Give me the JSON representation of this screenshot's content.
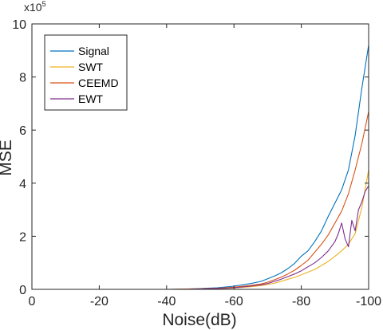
{
  "chart_data": {
    "type": "line",
    "xlabel": "Noise(dB)",
    "ylabel": "MSE",
    "y_multiplier_base": "x10",
    "y_multiplier_exp": "5",
    "xlim": [
      0,
      -100
    ],
    "ylim": [
      0,
      10
    ],
    "x_ticks": [
      0,
      -20,
      -40,
      -60,
      -80,
      -100
    ],
    "x_tick_labels": [
      "0",
      "-20",
      "-40",
      "-60",
      "-80",
      "-100"
    ],
    "y_ticks": [
      0,
      2,
      4,
      6,
      8,
      10
    ],
    "y_tick_labels": [
      "0",
      "2",
      "4",
      "6",
      "8",
      "10"
    ],
    "legend_position": "top-left",
    "grid": false,
    "series": [
      {
        "name": "Signal",
        "color": "#0072BD",
        "x": [
          -40,
          -45,
          -50,
          -55,
          -60,
          -65,
          -68,
          -70,
          -72,
          -74,
          -76,
          -78,
          -80,
          -82,
          -84,
          -86,
          -88,
          -90,
          -92,
          -94,
          -96,
          -98,
          -100
        ],
        "y": [
          0.0,
          0.01,
          0.03,
          0.06,
          0.12,
          0.22,
          0.3,
          0.4,
          0.5,
          0.62,
          0.78,
          0.98,
          1.25,
          1.45,
          1.8,
          2.2,
          2.75,
          3.25,
          3.75,
          4.5,
          5.8,
          7.6,
          9.2
        ]
      },
      {
        "name": "SWT",
        "color": "#EDB120",
        "x": [
          -40,
          -45,
          -50,
          -55,
          -60,
          -65,
          -68,
          -70,
          -72,
          -74,
          -76,
          -78,
          -80,
          -82,
          -84,
          -86,
          -88,
          -90,
          -92,
          -94,
          -96,
          -98,
          -100
        ],
        "y": [
          0.0,
          0.0,
          0.01,
          0.02,
          0.05,
          0.1,
          0.14,
          0.18,
          0.23,
          0.3,
          0.38,
          0.45,
          0.55,
          0.65,
          0.75,
          0.9,
          1.05,
          1.25,
          1.45,
          1.7,
          2.1,
          3.1,
          4.5
        ]
      },
      {
        "name": "CEEMD",
        "color": "#D95319",
        "x": [
          -40,
          -45,
          -50,
          -55,
          -60,
          -65,
          -68,
          -70,
          -72,
          -74,
          -76,
          -78,
          -80,
          -82,
          -84,
          -86,
          -88,
          -90,
          -92,
          -94,
          -96,
          -98,
          -100
        ],
        "y": [
          0.0,
          0.01,
          0.02,
          0.04,
          0.08,
          0.15,
          0.2,
          0.27,
          0.36,
          0.46,
          0.58,
          0.72,
          0.9,
          1.1,
          1.4,
          1.7,
          2.05,
          2.5,
          2.95,
          3.6,
          4.5,
          5.5,
          6.7
        ]
      },
      {
        "name": "EWT",
        "color": "#7E2F8E",
        "x": [
          -40,
          -45,
          -50,
          -55,
          -60,
          -65,
          -68,
          -70,
          -72,
          -74,
          -76,
          -78,
          -80,
          -82,
          -84,
          -86,
          -88,
          -90,
          -91,
          -92,
          -93,
          -94,
          -95,
          -96,
          -97,
          -98,
          -99,
          -100
        ],
        "y": [
          0.0,
          0.0,
          0.01,
          0.03,
          0.06,
          0.12,
          0.17,
          0.22,
          0.3,
          0.38,
          0.48,
          0.58,
          0.7,
          0.85,
          1.0,
          1.2,
          1.45,
          1.8,
          2.1,
          2.5,
          1.9,
          1.6,
          2.6,
          2.2,
          3.0,
          3.3,
          3.7,
          3.9
        ]
      }
    ]
  }
}
